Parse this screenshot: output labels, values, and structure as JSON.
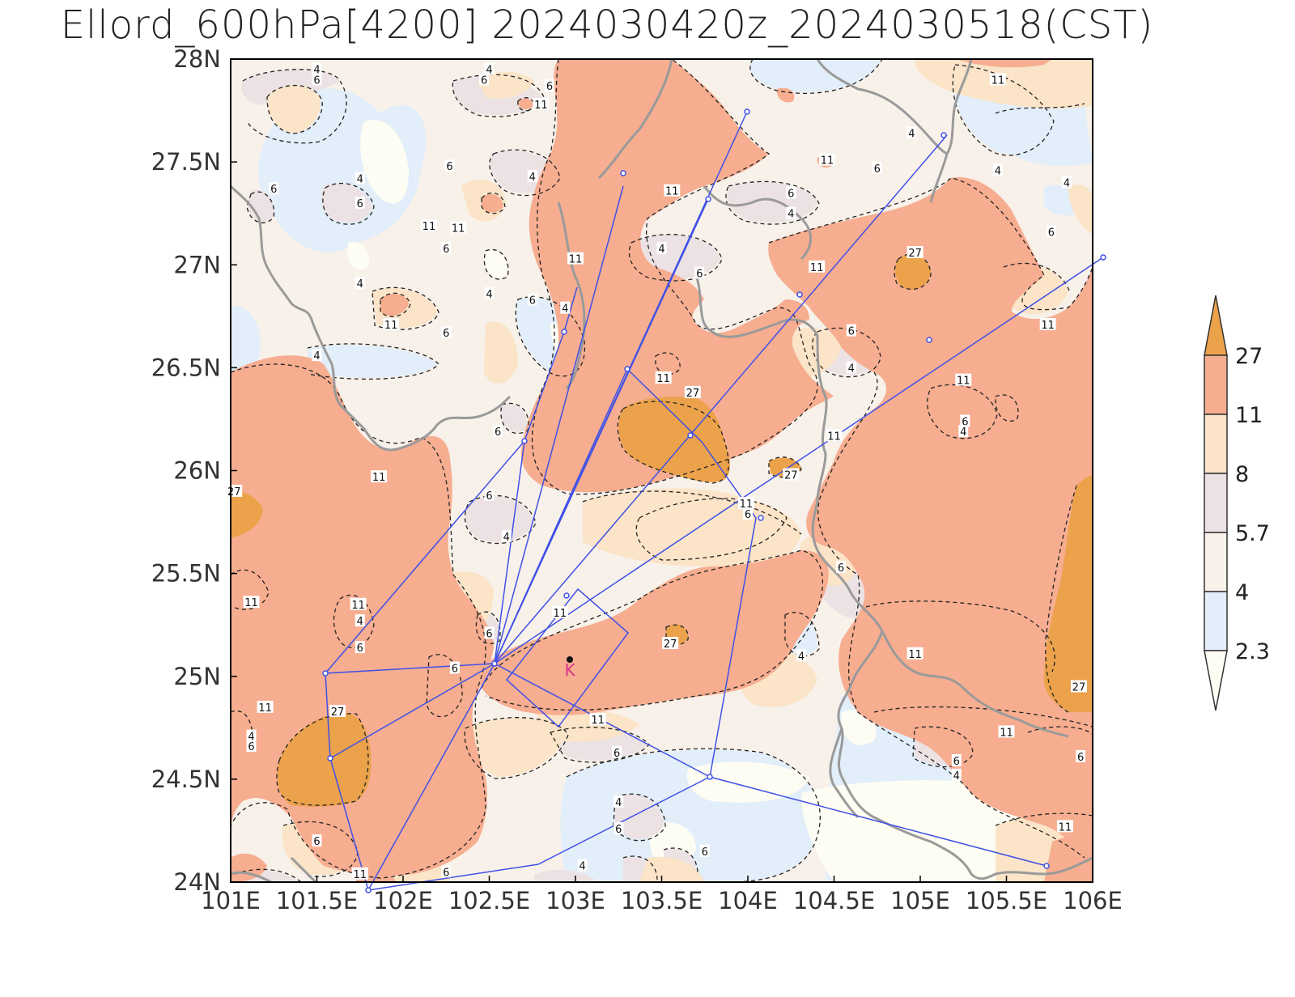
{
  "title": "Ellord_600hPa[4200] 2024030420z_2024030518(CST)",
  "colors": {
    "level_below_2_3": "#fefdf4",
    "level_2_3_4": "#e2eef9",
    "level_4_5_7": "#f8f1ea",
    "level_5_7_8": "#ece2e4",
    "level_8_11": "#fbe4c7",
    "level_11_27": "#f6ad90",
    "level_above_27": "#eca24b",
    "route_line": "#3f51e6",
    "boundary": "#9a9a9a",
    "marker_label": "#d6338a"
  },
  "map": {
    "lon_range": [
      101,
      106
    ],
    "lat_range": [
      24,
      28
    ],
    "x_ticks": [
      "101E",
      "101.5E",
      "102E",
      "102.5E",
      "103E",
      "103.5E",
      "104E",
      "104.5E",
      "105E",
      "105.5E",
      "106E"
    ],
    "y_ticks": [
      "24N",
      "24.5N",
      "25N",
      "25.5N",
      "26N",
      "26.5N",
      "27N",
      "27.5N",
      "28N"
    ],
    "station_marker": "K",
    "contour_labels": [
      {
        "text": "11",
        "lon": 104.5,
        "lat": 26.17
      },
      {
        "text": "11",
        "lon": 105.25,
        "lat": 26.44
      },
      {
        "text": "11",
        "lon": 102.15,
        "lat": 27.19
      },
      {
        "text": "11",
        "lon": 102.91,
        "lat": 25.31
      },
      {
        "text": "11",
        "lon": 101.2,
        "lat": 24.85
      },
      {
        "text": "11",
        "lon": 101.12,
        "lat": 25.36
      },
      {
        "text": "11",
        "lon": 103.13,
        "lat": 24.79
      },
      {
        "text": "11",
        "lon": 104.97,
        "lat": 25.11
      },
      {
        "text": "11",
        "lon": 105.5,
        "lat": 24.73
      },
      {
        "text": "11",
        "lon": 105.84,
        "lat": 24.27
      },
      {
        "text": "11",
        "lon": 103.56,
        "lat": 27.36
      },
      {
        "text": "11",
        "lon": 104.46,
        "lat": 27.51
      },
      {
        "text": "11",
        "lon": 104.4,
        "lat": 26.99
      },
      {
        "text": "11",
        "lon": 103.0,
        "lat": 27.03
      },
      {
        "text": "11",
        "lon": 102.8,
        "lat": 27.78
      },
      {
        "text": "11",
        "lon": 101.93,
        "lat": 26.71
      },
      {
        "text": "11",
        "lon": 105.45,
        "lat": 27.9
      },
      {
        "text": "11",
        "lon": 105.74,
        "lat": 26.71
      },
      {
        "text": "11",
        "lon": 103.51,
        "lat": 26.45
      },
      {
        "text": "11",
        "lon": 102.32,
        "lat": 27.18
      },
      {
        "text": "11",
        "lon": 103.99,
        "lat": 25.84
      },
      {
        "text": "11",
        "lon": 101.86,
        "lat": 25.97
      },
      {
        "text": "11",
        "lon": 101.74,
        "lat": 25.35
      },
      {
        "text": "11",
        "lon": 101.75,
        "lat": 24.04
      },
      {
        "text": "27",
        "lon": 103.68,
        "lat": 26.38
      },
      {
        "text": "27",
        "lon": 104.25,
        "lat": 25.98
      },
      {
        "text": "27",
        "lon": 103.55,
        "lat": 25.16
      },
      {
        "text": "27",
        "lon": 104.97,
        "lat": 27.06
      },
      {
        "text": "27",
        "lon": 105.92,
        "lat": 24.95
      },
      {
        "text": "27",
        "lon": 101.62,
        "lat": 24.83
      },
      {
        "text": "27",
        "lon": 101.02,
        "lat": 25.9
      },
      {
        "text": "6",
        "lon": 101.5,
        "lat": 27.9
      },
      {
        "text": "6",
        "lon": 102.47,
        "lat": 27.9
      },
      {
        "text": "6",
        "lon": 102.85,
        "lat": 27.87
      },
      {
        "text": "6",
        "lon": 102.27,
        "lat": 27.48
      },
      {
        "text": "6",
        "lon": 101.25,
        "lat": 27.37
      },
      {
        "text": "6",
        "lon": 101.75,
        "lat": 27.3
      },
      {
        "text": "6",
        "lon": 102.25,
        "lat": 27.08
      },
      {
        "text": "6",
        "lon": 102.75,
        "lat": 26.83
      },
      {
        "text": "6",
        "lon": 102.25,
        "lat": 26.67
      },
      {
        "text": "6",
        "lon": 103.72,
        "lat": 26.96
      },
      {
        "text": "6",
        "lon": 104.25,
        "lat": 27.35
      },
      {
        "text": "6",
        "lon": 104.75,
        "lat": 27.47
      },
      {
        "text": "6",
        "lon": 105.76,
        "lat": 27.16
      },
      {
        "text": "6",
        "lon": 104.6,
        "lat": 26.68
      },
      {
        "text": "6",
        "lon": 105.26,
        "lat": 26.24
      },
      {
        "text": "6",
        "lon": 102.55,
        "lat": 26.19
      },
      {
        "text": "6",
        "lon": 102.5,
        "lat": 25.88
      },
      {
        "text": "6",
        "lon": 104.0,
        "lat": 25.79
      },
      {
        "text": "6",
        "lon": 104.54,
        "lat": 25.53
      },
      {
        "text": "6",
        "lon": 102.5,
        "lat": 25.21
      },
      {
        "text": "6",
        "lon": 101.75,
        "lat": 25.14
      },
      {
        "text": "6",
        "lon": 102.3,
        "lat": 25.04
      },
      {
        "text": "6",
        "lon": 101.12,
        "lat": 24.66
      },
      {
        "text": "6",
        "lon": 103.24,
        "lat": 24.63
      },
      {
        "text": "6",
        "lon": 105.21,
        "lat": 24.59
      },
      {
        "text": "6",
        "lon": 105.93,
        "lat": 24.61
      },
      {
        "text": "6",
        "lon": 103.25,
        "lat": 24.26
      },
      {
        "text": "6",
        "lon": 103.75,
        "lat": 24.15
      },
      {
        "text": "6",
        "lon": 101.5,
        "lat": 24.2
      },
      {
        "text": "6",
        "lon": 102.25,
        "lat": 24.05
      },
      {
        "text": "4",
        "lon": 101.5,
        "lat": 27.95
      },
      {
        "text": "4",
        "lon": 102.5,
        "lat": 27.95
      },
      {
        "text": "4",
        "lon": 102.75,
        "lat": 27.43
      },
      {
        "text": "4",
        "lon": 101.75,
        "lat": 27.42
      },
      {
        "text": "4",
        "lon": 101.75,
        "lat": 26.91
      },
      {
        "text": "4",
        "lon": 102.5,
        "lat": 26.86
      },
      {
        "text": "4",
        "lon": 102.94,
        "lat": 26.79
      },
      {
        "text": "4",
        "lon": 103.5,
        "lat": 27.08
      },
      {
        "text": "4",
        "lon": 104.25,
        "lat": 27.25
      },
      {
        "text": "4",
        "lon": 104.95,
        "lat": 27.64
      },
      {
        "text": "4",
        "lon": 105.45,
        "lat": 27.46
      },
      {
        "text": "4",
        "lon": 105.85,
        "lat": 27.4
      },
      {
        "text": "4",
        "lon": 101.5,
        "lat": 26.56
      },
      {
        "text": "4",
        "lon": 104.6,
        "lat": 26.5
      },
      {
        "text": "4",
        "lon": 105.25,
        "lat": 26.19
      },
      {
        "text": "4",
        "lon": 102.6,
        "lat": 25.68
      },
      {
        "text": "4",
        "lon": 101.75,
        "lat": 25.27
      },
      {
        "text": "4",
        "lon": 104.31,
        "lat": 25.1
      },
      {
        "text": "4",
        "lon": 101.12,
        "lat": 24.71
      },
      {
        "text": "4",
        "lon": 105.21,
        "lat": 24.52
      },
      {
        "text": "4",
        "lon": 103.25,
        "lat": 24.39
      },
      {
        "text": "4",
        "lon": 103.04,
        "lat": 24.08
      }
    ],
    "note_legend": "colorbar levels"
  },
  "colorbar": {
    "labels": [
      "27",
      "11",
      "8",
      "5.7",
      "4",
      "2.3"
    ]
  }
}
